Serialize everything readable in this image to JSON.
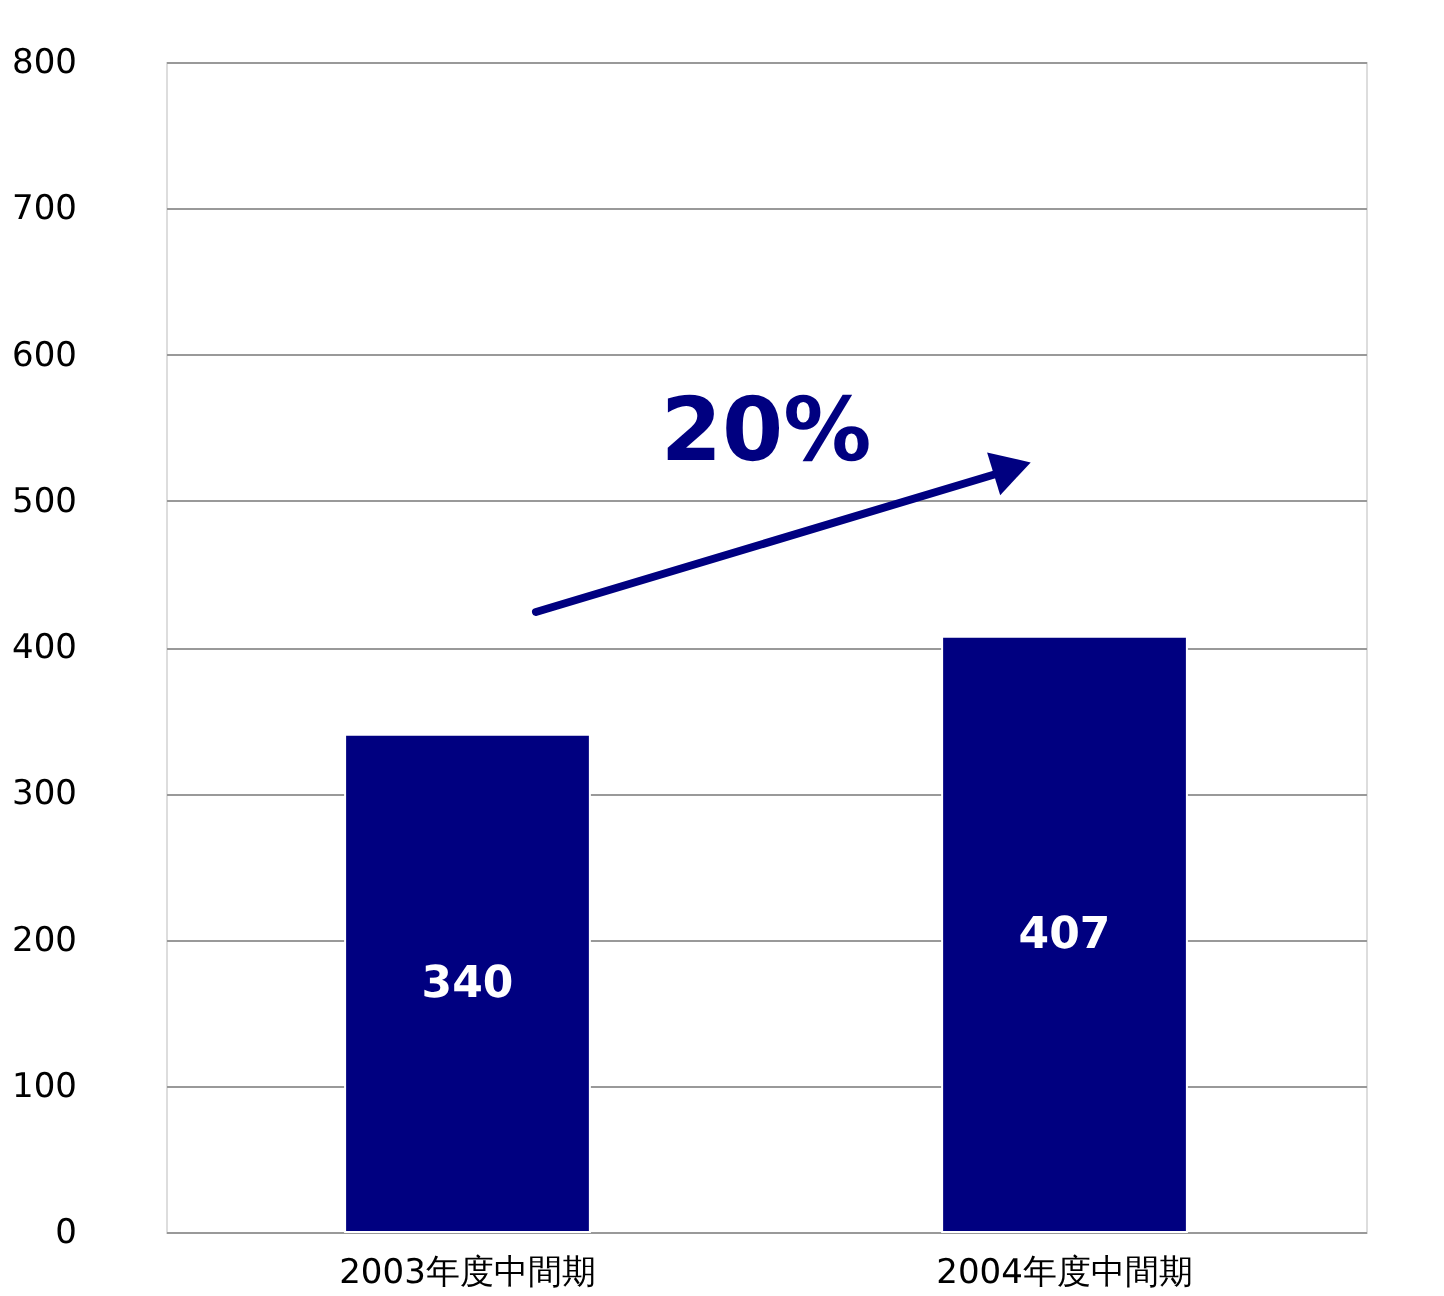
{
  "chart_data": {
    "type": "bar",
    "categories": [
      "2003年度中間期",
      "2004年度中間期"
    ],
    "values": [
      340,
      407
    ],
    "color": "#000080",
    "data_labels": true,
    "ylim": [
      0,
      800
    ],
    "yticks": [
      0,
      100,
      200,
      300,
      400,
      500,
      600,
      700,
      800
    ],
    "grid": "y",
    "annotations": [
      "20%"
    ]
  }
}
